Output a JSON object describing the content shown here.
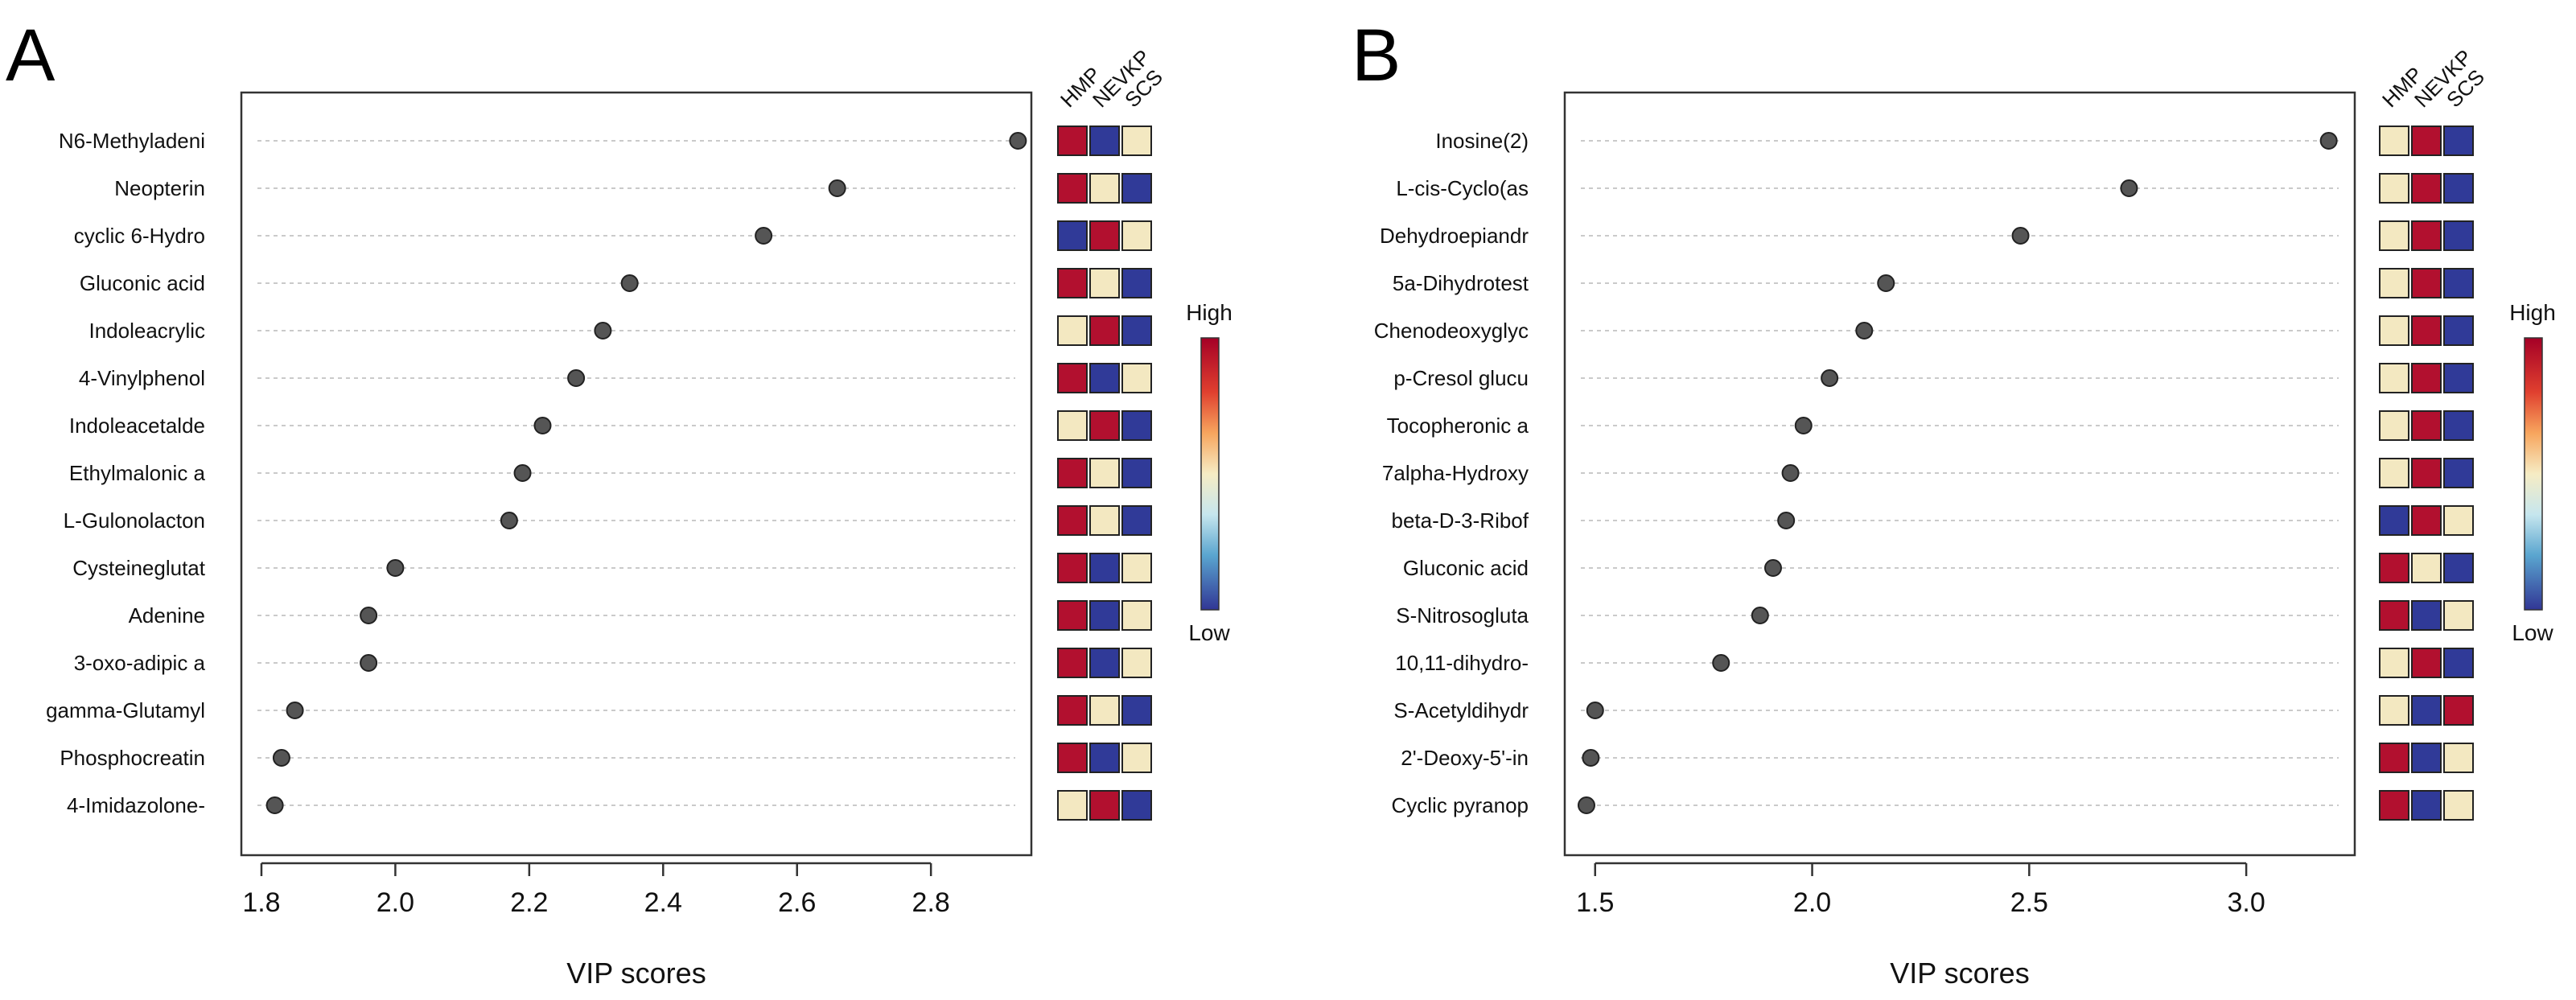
{
  "chart_data": [
    {
      "type": "scatter",
      "panel_label": "A",
      "xlabel": "VIP scores",
      "xlim": [
        1.77,
        2.95
      ],
      "xticks": [
        "1.8",
        "2.0",
        "2.2",
        "2.4",
        "2.6",
        "2.8"
      ],
      "groups": [
        "HMP",
        "NEVKP",
        "SCS"
      ],
      "legend": {
        "high": "High",
        "low": "Low"
      },
      "rows": [
        {
          "label": "N6-Methyladeni",
          "value": 2.93,
          "levels": [
            "high",
            "low",
            "mid"
          ]
        },
        {
          "label": "Neopterin",
          "value": 2.66,
          "levels": [
            "high",
            "mid",
            "low"
          ]
        },
        {
          "label": "cyclic 6-Hydro",
          "value": 2.55,
          "levels": [
            "low",
            "high",
            "mid"
          ]
        },
        {
          "label": "Gluconic acid",
          "value": 2.35,
          "levels": [
            "high",
            "mid",
            "low"
          ]
        },
        {
          "label": "Indoleacrylic ",
          "value": 2.31,
          "levels": [
            "mid",
            "high",
            "low"
          ]
        },
        {
          "label": "4-Vinylphenol",
          "value": 2.27,
          "levels": [
            "high",
            "low",
            "mid"
          ]
        },
        {
          "label": "Indoleacetalde",
          "value": 2.22,
          "levels": [
            "mid",
            "high",
            "low"
          ]
        },
        {
          "label": "Ethylmalonic a",
          "value": 2.19,
          "levels": [
            "high",
            "mid",
            "low"
          ]
        },
        {
          "label": "L-Gulonolacton",
          "value": 2.17,
          "levels": [
            "high",
            "mid",
            "low"
          ]
        },
        {
          "label": "Cysteineglutat",
          "value": 2.0,
          "levels": [
            "high",
            "low",
            "mid"
          ]
        },
        {
          "label": "Adenine",
          "value": 1.96,
          "levels": [
            "high",
            "low",
            "mid"
          ]
        },
        {
          "label": "3-oxo-adipic a",
          "value": 1.96,
          "levels": [
            "high",
            "low",
            "mid"
          ]
        },
        {
          "label": "gamma-Glutamyl",
          "value": 1.85,
          "levels": [
            "high",
            "mid",
            "low"
          ]
        },
        {
          "label": "Phosphocreatin",
          "value": 1.83,
          "levels": [
            "high",
            "low",
            "mid"
          ]
        },
        {
          "label": "4-Imidazolone-",
          "value": 1.82,
          "levels": [
            "mid",
            "high",
            "low"
          ]
        }
      ]
    },
    {
      "type": "scatter",
      "panel_label": "B",
      "xlabel": "VIP scores",
      "xlim": [
        1.43,
        3.25
      ],
      "xticks": [
        "1.5",
        "2.0",
        "2.5",
        "3.0"
      ],
      "groups": [
        "HMP",
        "NEVKP",
        "SCS"
      ],
      "legend": {
        "high": "High",
        "low": "Low"
      },
      "rows": [
        {
          "label": "Inosine(2)",
          "value": 3.19,
          "levels": [
            "mid",
            "high",
            "low"
          ]
        },
        {
          "label": "L-cis-Cyclo(as",
          "value": 2.73,
          "levels": [
            "mid",
            "high",
            "low"
          ]
        },
        {
          "label": "Dehydroepiandr",
          "value": 2.48,
          "levels": [
            "mid",
            "high",
            "low"
          ]
        },
        {
          "label": "5a-Dihydrotest",
          "value": 2.17,
          "levels": [
            "mid",
            "high",
            "low"
          ]
        },
        {
          "label": "Chenodeoxyglyc",
          "value": 2.12,
          "levels": [
            "mid",
            "high",
            "low"
          ]
        },
        {
          "label": "p-Cresol glucu",
          "value": 2.04,
          "levels": [
            "mid",
            "high",
            "low"
          ]
        },
        {
          "label": "Tocopheronic a",
          "value": 1.98,
          "levels": [
            "mid",
            "high",
            "low"
          ]
        },
        {
          "label": "7alpha-Hydroxy",
          "value": 1.95,
          "levels": [
            "mid",
            "high",
            "low"
          ]
        },
        {
          "label": "beta-D-3-Ribof",
          "value": 1.94,
          "levels": [
            "low",
            "high",
            "mid"
          ]
        },
        {
          "label": "Gluconic acid",
          "value": 1.91,
          "levels": [
            "high",
            "mid",
            "low"
          ]
        },
        {
          "label": "S-Nitrosogluta",
          "value": 1.88,
          "levels": [
            "high",
            "low",
            "mid"
          ]
        },
        {
          "label": "10,11-dihydro-",
          "value": 1.79,
          "levels": [
            "mid",
            "high",
            "low"
          ]
        },
        {
          "label": "S-Acetyldihydr",
          "value": 1.5,
          "levels": [
            "mid",
            "low",
            "high"
          ]
        },
        {
          "label": "2'-Deoxy-5'-in",
          "value": 1.49,
          "levels": [
            "high",
            "low",
            "mid"
          ]
        },
        {
          "label": "Cyclic pyranop",
          "value": 1.48,
          "levels": [
            "high",
            "low",
            "mid"
          ]
        }
      ]
    }
  ],
  "colors": {
    "high": "#b2102f",
    "mid": "#f3e8c1",
    "low": "#303a98",
    "point": "#555555",
    "grid": "#b8b8b8"
  }
}
